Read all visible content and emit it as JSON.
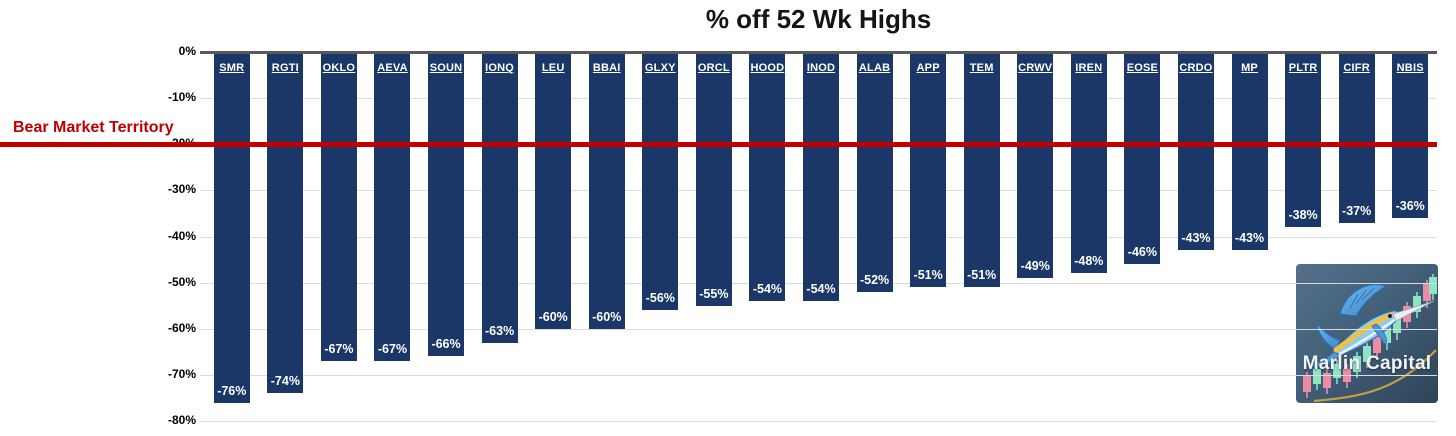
{
  "title": "% off 52 Wk Highs",
  "annotation": {
    "label": "Bear Market Territory",
    "y_value": -20,
    "color": "#C00000"
  },
  "logo": {
    "text": "Marlin Capital"
  },
  "colors": {
    "bar": "#1B3767",
    "grid": "#DCDCDC",
    "axis": "#595959",
    "red_line": "#C00000",
    "bar_label": "#FFFFFF",
    "title_text": "#141414",
    "background": "#FFFFFF"
  },
  "chart_data": {
    "type": "bar",
    "title": "% off 52 Wk Highs",
    "xlabel": "",
    "ylabel": "",
    "ylim": [
      -80,
      0
    ],
    "grid": true,
    "legend": "none",
    "yticks": [
      "0%",
      "-10%",
      "-20%",
      "-30%",
      "-40%",
      "-50%",
      "-60%",
      "-70%",
      "-80%"
    ],
    "categories": [
      "SMR",
      "RGTI",
      "OKLO",
      "AEVA",
      "SOUN",
      "IONQ",
      "LEU",
      "BBAI",
      "GLXY",
      "ORCL",
      "HOOD",
      "INOD",
      "ALAB",
      "APP",
      "TEM",
      "CRWV",
      "IREN",
      "EOSE",
      "CRDO",
      "MP",
      "PLTR",
      "CIFR",
      "NBIS"
    ],
    "values": [
      -76,
      -74,
      -67,
      -67,
      -66,
      -63,
      -60,
      -60,
      -56,
      -55,
      -54,
      -54,
      -52,
      -51,
      -51,
      -49,
      -48,
      -46,
      -43,
      -43,
      -38,
      -37,
      -36
    ],
    "bar_labels": [
      "-76%",
      "-74%",
      "-67%",
      "-67%",
      "-66%",
      "-63%",
      "-60%",
      "-60%",
      "-56%",
      "-55%",
      "-54%",
      "-54%",
      "-52%",
      "-51%",
      "-51%",
      "-49%",
      "-48%",
      "-46%",
      "-43%",
      "-43%",
      "-38%",
      "-37%",
      "-36%"
    ],
    "annotation_line": {
      "label": "Bear Market Territory",
      "y": -20
    }
  }
}
